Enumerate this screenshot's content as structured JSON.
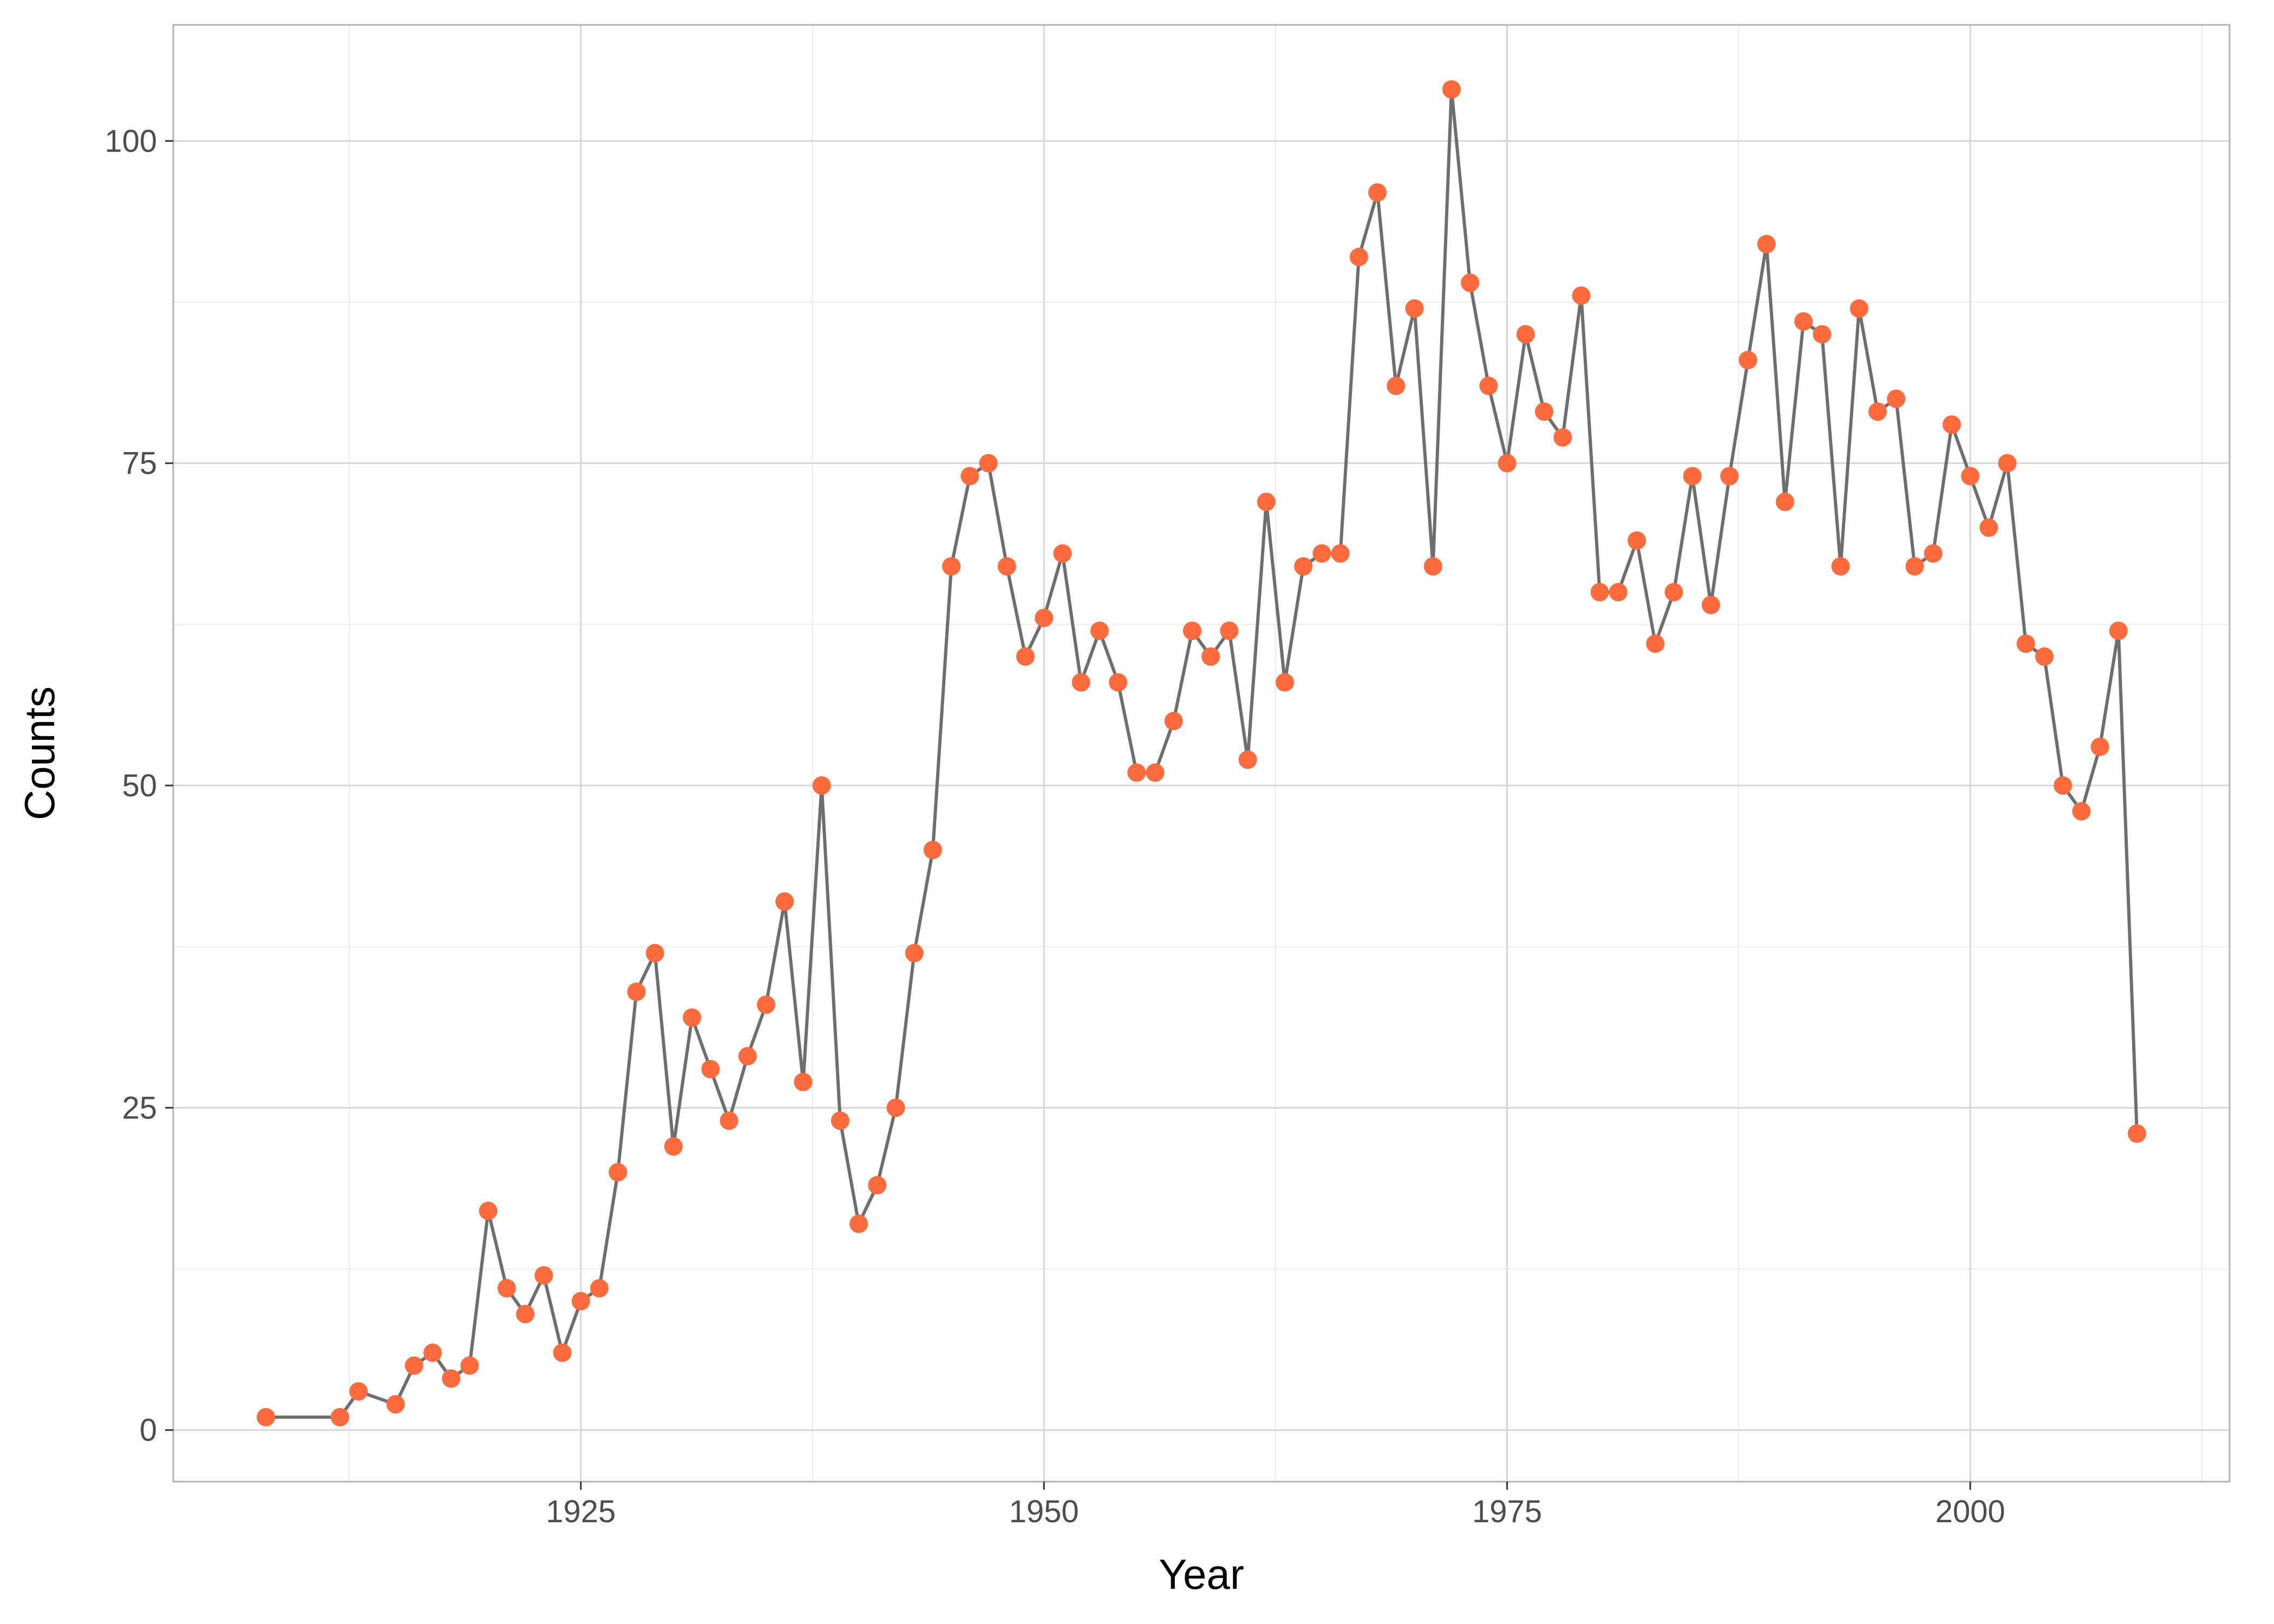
{
  "chart_data": {
    "type": "line",
    "title": "",
    "xlabel": "Year",
    "ylabel": "Counts",
    "xlim": [
      1903,
      2014
    ],
    "ylim": [
      -4,
      109
    ],
    "x_ticks": [
      1925,
      1950,
      1975,
      2000
    ],
    "x_tick_labels": [
      "1925",
      "1950",
      "1975",
      "2000"
    ],
    "x_minor_ticks": [
      1912.5,
      1937.5,
      1962.5,
      1987.5,
      2012.5
    ],
    "y_ticks": [
      0,
      25,
      50,
      75,
      100
    ],
    "y_tick_labels": [
      "0",
      "25",
      "50",
      "75",
      "100"
    ],
    "y_minor_ticks": [
      12.5,
      37.5,
      62.5,
      87.5
    ],
    "grid": true,
    "legend": "none",
    "colors": {
      "line": "#6e6e6e",
      "point": "#ff6b3d",
      "panel_border": "#b3b3b3",
      "grid_major": "#d6d6d6",
      "grid_minor": "#ececec"
    },
    "series": [
      {
        "x": [
          1908,
          1912,
          1913,
          1915,
          1916,
          1917,
          1918,
          1919,
          1920,
          1921,
          1922,
          1923,
          1924,
          1925,
          1926,
          1927,
          1928,
          1929,
          1930,
          1931,
          1932,
          1933,
          1934,
          1935,
          1936,
          1937,
          1938,
          1939,
          1940,
          1941,
          1942,
          1943,
          1944,
          1945,
          1946,
          1947,
          1948,
          1949,
          1950,
          1951,
          1952,
          1953,
          1954,
          1955,
          1956,
          1957,
          1958,
          1959,
          1960,
          1961,
          1962,
          1963,
          1964,
          1965,
          1966,
          1967,
          1968,
          1969,
          1970,
          1971,
          1972,
          1973,
          1974,
          1975,
          1976,
          1977,
          1978,
          1979,
          1980,
          1981,
          1982,
          1983,
          1984,
          1985,
          1986,
          1987,
          1988,
          1989,
          1990,
          1991,
          1992,
          1993,
          1994,
          1995,
          1996,
          1997,
          1998,
          1999,
          2000,
          2001,
          2002,
          2003,
          2004,
          2005,
          2006,
          2007,
          2008,
          2009
        ],
        "y": [
          1,
          1,
          3,
          2,
          5,
          6,
          4,
          5,
          17,
          11,
          9,
          12,
          6,
          10,
          11,
          20,
          34,
          37,
          22,
          32,
          28,
          24,
          29,
          33,
          41,
          27,
          50,
          24,
          16,
          19,
          25,
          37,
          45,
          67,
          74,
          75,
          67,
          60,
          63,
          68,
          58,
          62,
          58,
          51,
          51,
          55,
          62,
          60,
          62,
          52,
          72,
          58,
          67,
          68,
          68,
          91,
          96,
          81,
          87,
          67,
          104,
          89,
          81,
          75,
          85,
          79,
          77,
          88,
          65,
          65,
          69,
          61,
          65,
          74,
          64,
          74,
          83,
          92,
          72,
          86,
          85,
          67,
          87,
          79,
          80,
          67,
          68,
          78,
          74,
          70,
          75,
          61,
          60,
          50,
          48,
          53,
          62,
          23
        ]
      }
    ]
  }
}
